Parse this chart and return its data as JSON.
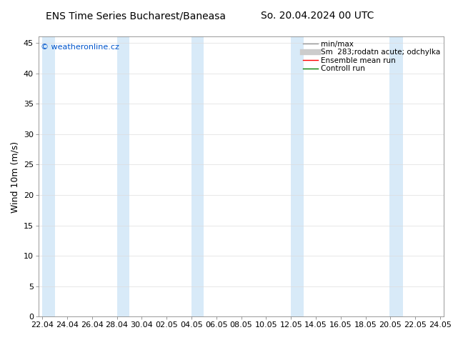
{
  "title_left": "ENS Time Series Bucharest/Baneasa",
  "title_right": "So. 20.04.2024 00 UTC",
  "ylabel": "Wind 10m (m/s)",
  "ylim": [
    0,
    46
  ],
  "yticks": [
    0,
    5,
    10,
    15,
    20,
    25,
    30,
    35,
    40,
    45
  ],
  "watermark": "© weatheronline.cz",
  "watermark_color": "#0055cc",
  "bg_color": "#ffffff",
  "plot_bg_color": "#ffffff",
  "band_color": "#d8eaf8",
  "x_tick_labels": [
    "22.04",
    "24.04",
    "26.04",
    "28.04",
    "30.04",
    "02.05",
    "04.05",
    "06.05",
    "08.05",
    "10.05",
    "12.05",
    "14.05",
    "16.05",
    "18.05",
    "20.05",
    "22.05",
    "24.05"
  ],
  "x_tick_positions": [
    0,
    2,
    4,
    6,
    8,
    10,
    12,
    14,
    16,
    18,
    20,
    22,
    24,
    26,
    28,
    30,
    32
  ],
  "x_lim": [
    -0.3,
    32.3
  ],
  "band_positions": [
    [
      0.0,
      1.0
    ],
    [
      6.0,
      7.0
    ],
    [
      12.0,
      13.0
    ],
    [
      20.0,
      21.0
    ],
    [
      27.9,
      29.0
    ]
  ],
  "legend_labels": [
    "min/max",
    "Sm  283;rodatn acute; odchylka",
    "Ensemble mean run",
    "Controll run"
  ],
  "legend_colors": [
    "#999999",
    "#cccccc",
    "#ff0000",
    "#008000"
  ],
  "legend_lws": [
    1.0,
    6,
    1.0,
    1.0
  ],
  "title_fontsize": 10,
  "ylabel_fontsize": 9,
  "tick_fontsize": 8,
  "watermark_fontsize": 8,
  "legend_fontsize": 7.5
}
